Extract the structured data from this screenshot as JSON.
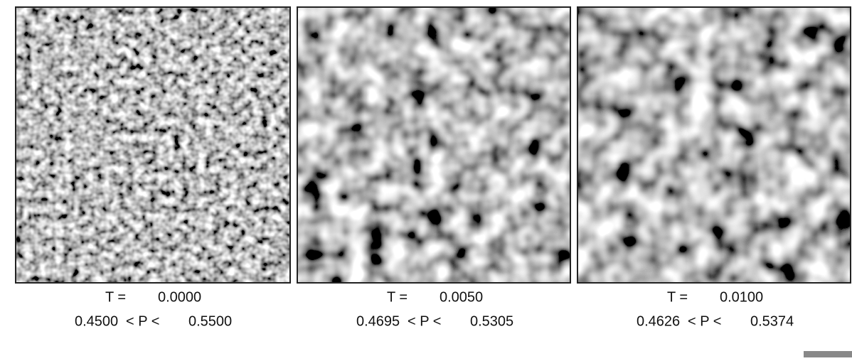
{
  "panels": [
    {
      "t_label": "T =",
      "t": "0.0000",
      "p_low": "0.4500",
      "p_rel": "< P <",
      "p_high": "0.5500"
    },
    {
      "t_label": "T =",
      "t": "0.0050",
      "p_low": "0.4695",
      "p_rel": "< P <",
      "p_high": "0.5305"
    },
    {
      "t_label": "T =",
      "t": "0.0100",
      "p_low": "0.4626",
      "p_rel": "< P <",
      "p_high": "0.5374"
    }
  ]
}
